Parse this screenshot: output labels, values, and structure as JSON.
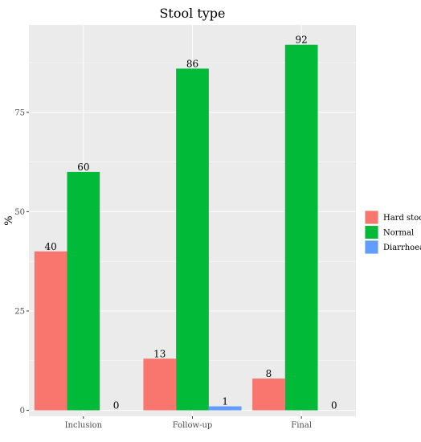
{
  "chart_data": {
    "type": "bar",
    "title": "Stool type",
    "ylabel": "%",
    "xlabel": "",
    "categories": [
      "Inclusion",
      "Follow-up",
      "Final"
    ],
    "series": [
      {
        "name": "Hard stools",
        "values": [
          40,
          13,
          8
        ],
        "color": "#F8766D"
      },
      {
        "name": "Normal",
        "values": [
          60,
          86,
          92
        ],
        "color": "#00BA38"
      },
      {
        "name": "Diarrhoea",
        "values": [
          0,
          1,
          0
        ],
        "color": "#619CFF"
      }
    ],
    "yticks": [
      0,
      25,
      50,
      75
    ],
    "ylim": [
      -1.5,
      97
    ],
    "grid": true,
    "legend_position": "right",
    "panel_background": "#EBEBEB",
    "grid_color": "#FFFFFF"
  }
}
